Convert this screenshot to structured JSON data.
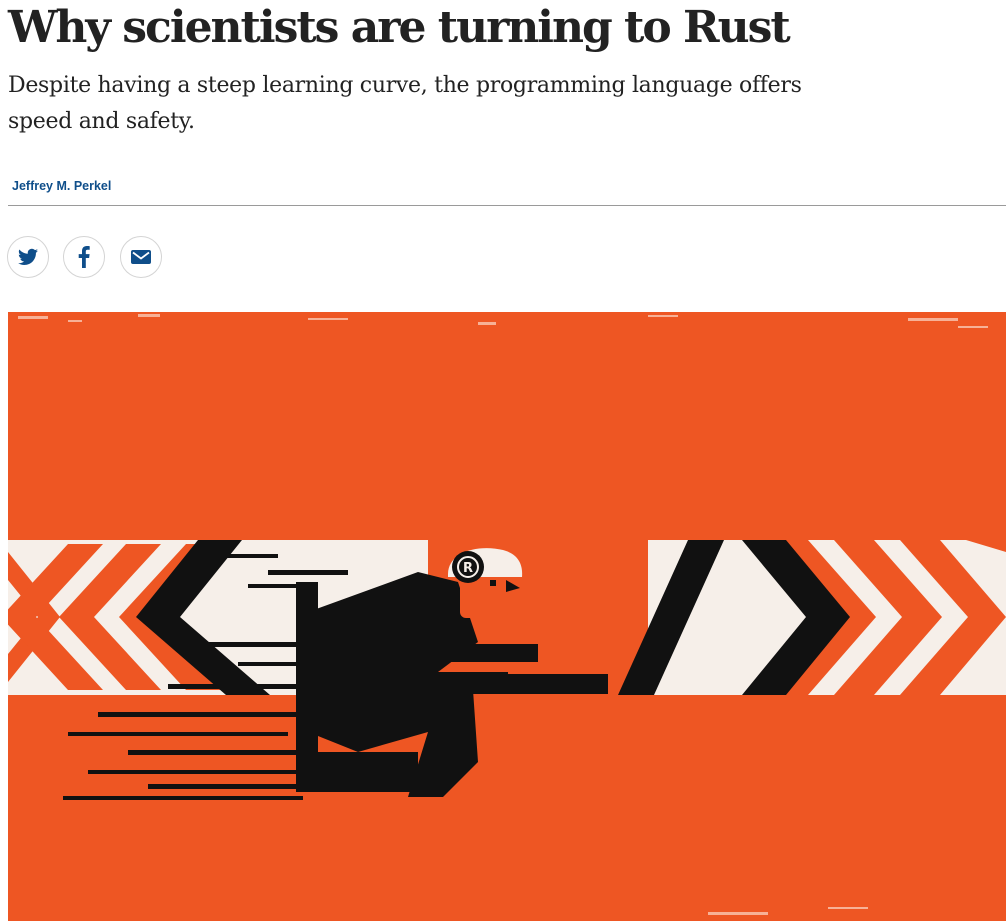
{
  "article": {
    "headline": "Why scientists are turning to Rust",
    "standfirst": "Despite having a steep learning curve, the programming language offers speed and safety.",
    "author": "Jeffrey M. Perkel"
  },
  "share": [
    {
      "icon": "twitter-icon"
    },
    {
      "icon": "facebook-icon"
    },
    {
      "icon": "email-icon"
    }
  ],
  "colors": {
    "accent": "#0f4e8a",
    "hero_background": "#ee5623"
  }
}
